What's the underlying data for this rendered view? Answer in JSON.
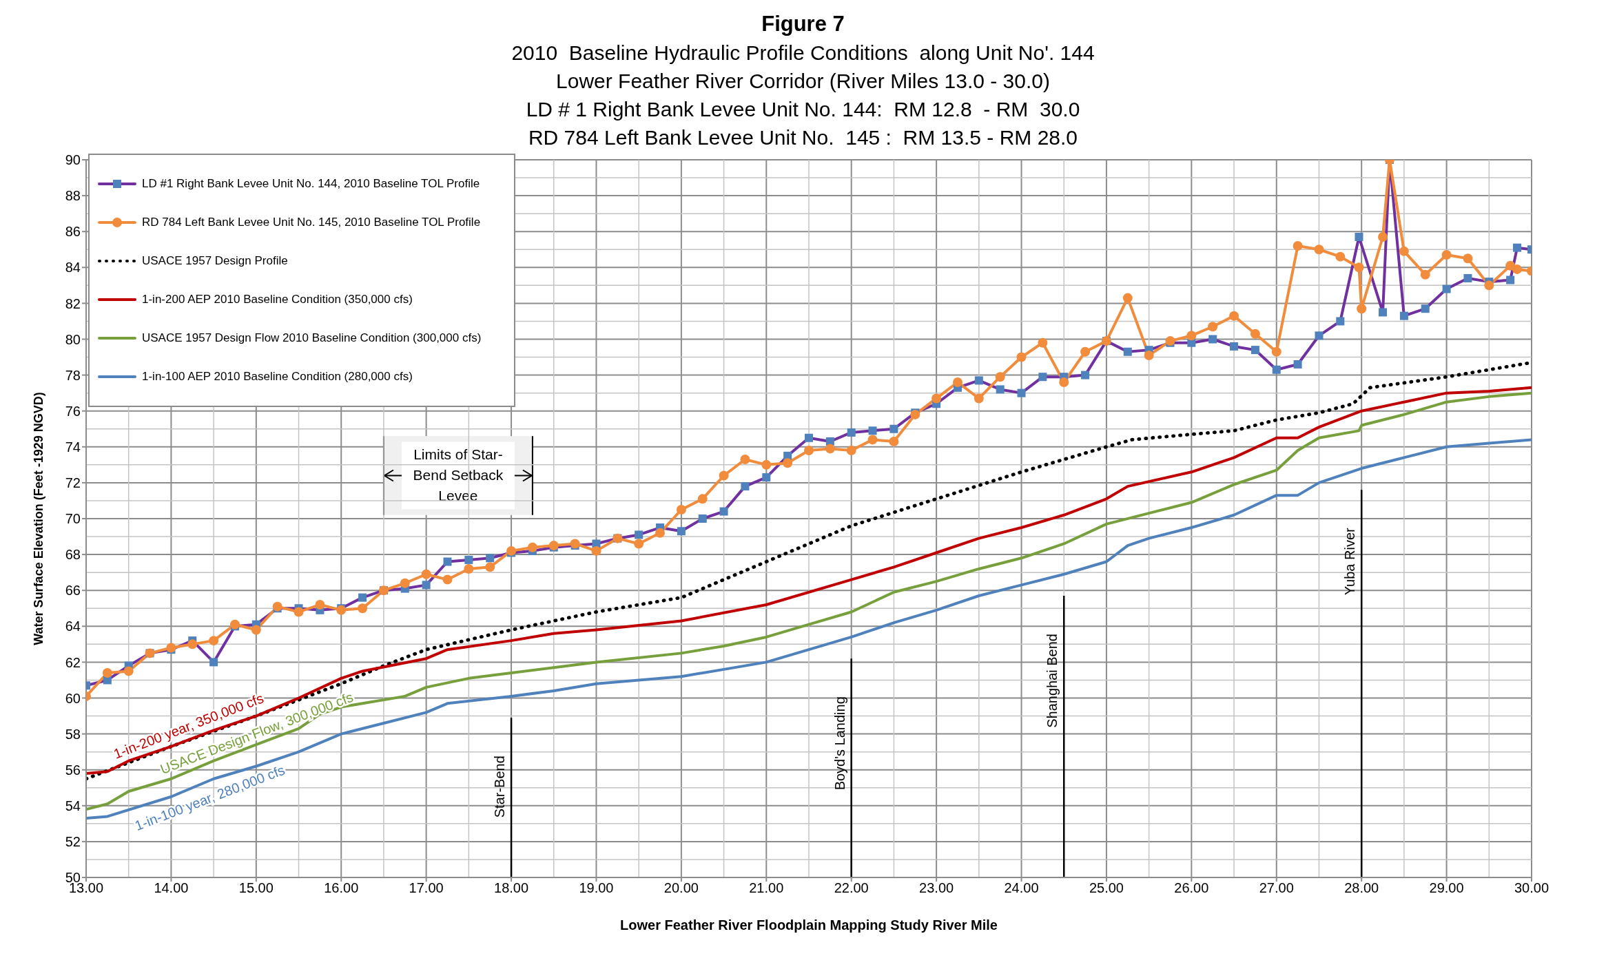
{
  "chart_data": {
    "type": "line",
    "title": "Figure 7",
    "subtitle": "2010  Baseline Hydraulic Profile Conditions  along Unit No'. 144\nLower Feather River Corridor (River Miles 13.0 - 30.0)\nLD # 1 Right Bank Levee Unit No. 144:  RM 12.8  - RM  30.0\nRD 784 Left Bank Levee Unit No.  145 :  RM 13.5 - RM 28.0",
    "xlabel": "Lower Feather River Floodplain Mapping Study River Mile",
    "ylabel": "Water Surface Elevation (Feet -1929 NGVD)",
    "xlim": [
      13,
      30
    ],
    "xticks": [
      {
        "value": 13,
        "label": "13.00"
      },
      {
        "value": 14,
        "label": "14.00"
      },
      {
        "value": 15,
        "label": "15.00"
      },
      {
        "value": 16,
        "label": "16.00"
      },
      {
        "value": 17,
        "label": "17.00"
      },
      {
        "value": 18,
        "label": "18.00"
      },
      {
        "value": 19,
        "label": "19.00"
      },
      {
        "value": 20,
        "label": "20.00"
      },
      {
        "value": 21,
        "label": "21.00"
      },
      {
        "value": 22,
        "label": "22.00"
      },
      {
        "value": 23,
        "label": "23.00"
      },
      {
        "value": 24,
        "label": "24.00"
      },
      {
        "value": 25,
        "label": "25.00"
      },
      {
        "value": 26,
        "label": "26.00"
      },
      {
        "value": 27,
        "label": "27.00"
      },
      {
        "value": 28,
        "label": "28.00"
      },
      {
        "value": 29,
        "label": "29.00"
      },
      {
        "value": 30,
        "label": "30.00"
      }
    ],
    "ylim": [
      50,
      90
    ],
    "yticks": [
      50,
      52,
      54,
      56,
      58,
      60,
      62,
      64,
      66,
      68,
      70,
      72,
      74,
      76,
      78,
      80,
      82,
      84,
      86,
      88,
      90
    ],
    "grid": true,
    "legend": "top left",
    "series": [
      {
        "name": "LD #1 Right Bank Levee Unit No. 144, 2010 Baseline TOL Profile",
        "color": "#7030a0",
        "marker": "square",
        "line_style": "solid",
        "x": [
          13,
          13.25,
          13.5,
          13.75,
          14,
          14.25,
          14.5,
          14.75,
          15,
          15.25,
          15.5,
          15.75,
          16,
          16.25,
          16.5,
          16.75,
          17,
          17.25,
          17.5,
          17.75,
          18,
          18.25,
          18.5,
          18.75,
          19,
          19.25,
          19.5,
          19.75,
          20,
          20.25,
          20.5,
          20.75,
          21,
          21.25,
          21.5,
          21.75,
          22,
          22.25,
          22.5,
          22.75,
          23,
          23.25,
          23.5,
          23.75,
          24,
          24.25,
          24.5,
          24.75,
          25,
          25.25,
          25.5,
          25.75,
          26,
          26.25,
          26.5,
          26.75,
          27,
          27.25,
          27.5,
          27.75,
          27.97,
          28.25,
          28.33,
          28.5,
          28.75,
          29,
          29.25,
          29.5,
          29.75,
          29.83,
          30
        ],
        "values": [
          60.7,
          61.0,
          61.8,
          62.5,
          62.7,
          63.2,
          62.0,
          64.0,
          64.1,
          65.0,
          65.0,
          64.9,
          65.0,
          65.6,
          66.0,
          66.1,
          66.3,
          67.6,
          67.7,
          67.8,
          68.1,
          68.2,
          68.4,
          68.5,
          68.6,
          68.9,
          69.1,
          69.5,
          69.3,
          70.0,
          70.4,
          71.8,
          72.3,
          73.5,
          74.5,
          74.3,
          74.8,
          74.9,
          75.0,
          75.9,
          76.4,
          77.3,
          77.7,
          77.2,
          77.0,
          77.9,
          77.9,
          78.0,
          79.9,
          79.3,
          79.4,
          79.8,
          79.8,
          80.0,
          79.6,
          79.4,
          78.3,
          78.6,
          80.2,
          81.0,
          85.7,
          81.5,
          90,
          81.3,
          81.7,
          82.8,
          83.4,
          83.2,
          83.3,
          85.1,
          85.0
        ]
      },
      {
        "name": "RD 784 Left Bank Levee Unit No. 145, 2010 Baseline TOL Profile",
        "color": "#f08c3c",
        "marker": "circle",
        "line_style": "solid",
        "x": [
          13,
          13.25,
          13.5,
          13.75,
          14,
          14.25,
          14.5,
          14.75,
          15,
          15.25,
          15.5,
          15.75,
          16,
          16.25,
          16.5,
          16.75,
          17,
          17.25,
          17.5,
          17.75,
          18,
          18.25,
          18.5,
          18.75,
          19,
          19.25,
          19.5,
          19.75,
          20,
          20.25,
          20.5,
          20.75,
          21,
          21.25,
          21.5,
          21.75,
          22,
          22.25,
          22.5,
          22.75,
          23,
          23.25,
          23.5,
          23.75,
          24,
          24.25,
          24.5,
          24.75,
          25,
          25.25,
          25.5,
          25.75,
          26,
          26.25,
          26.5,
          26.75,
          27,
          27.25,
          27.5,
          27.75,
          27.97,
          28,
          28.25,
          28.33,
          28.5,
          28.75,
          29,
          29.25,
          29.5,
          29.75,
          29.83,
          30
        ],
        "values": [
          60.1,
          61.4,
          61.5,
          62.5,
          62.8,
          63.0,
          63.2,
          64.1,
          63.8,
          65.1,
          64.8,
          65.2,
          64.9,
          65.0,
          66.0,
          66.4,
          66.9,
          66.6,
          67.2,
          67.3,
          68.2,
          68.4,
          68.5,
          68.6,
          68.2,
          68.9,
          68.6,
          69.2,
          70.5,
          71.1,
          72.4,
          73.3,
          73.0,
          73.1,
          73.8,
          73.9,
          73.8,
          74.4,
          74.3,
          75.8,
          76.7,
          77.6,
          76.7,
          77.9,
          79.0,
          79.8,
          77.6,
          79.3,
          79.9,
          82.3,
          79.1,
          79.9,
          80.2,
          80.7,
          81.3,
          80.3,
          79.3,
          85.2,
          85.0,
          84.6,
          84.0,
          81.7,
          85.7,
          90,
          84.9,
          83.6,
          84.7,
          84.5,
          83.0,
          84.1,
          83.9,
          83.8
        ]
      },
      {
        "name": "USACE 1957 Design Profile",
        "color": "#000000",
        "marker": "none",
        "line_style": "dotted",
        "x": [
          13,
          14,
          15,
          16,
          16.5,
          17,
          18,
          19,
          20,
          20.5,
          21,
          21.5,
          22,
          23,
          24,
          25,
          25.3,
          26,
          26.5,
          27,
          27.5,
          27.9,
          28.1,
          29,
          30
        ],
        "values": [
          55.5,
          57.3,
          59.0,
          60.8,
          61.8,
          62.7,
          63.8,
          64.8,
          65.6,
          66.6,
          67.6,
          68.6,
          69.6,
          71.1,
          72.6,
          74.0,
          74.4,
          74.7,
          74.9,
          75.5,
          75.9,
          76.4,
          77.3,
          77.9,
          78.7
        ]
      },
      {
        "name": "1-in-200 AEP 2010 Baseline Condition (350,000 cfs)",
        "color": "#c00000",
        "marker": "none",
        "line_style": "solid",
        "x": [
          13,
          13.25,
          13.5,
          14,
          14.5,
          15,
          15.5,
          16,
          16.25,
          17,
          17.25,
          18,
          18.5,
          19,
          20,
          21,
          22,
          22.5,
          23,
          23.5,
          24,
          24.5,
          25,
          25.25,
          26,
          26.5,
          27,
          27.25,
          27.5,
          28,
          28.5,
          29,
          29.5,
          30
        ],
        "values": [
          55.8,
          55.9,
          56.5,
          57.3,
          58.2,
          59.0,
          60.0,
          61.1,
          61.5,
          62.2,
          62.7,
          63.2,
          63.6,
          63.8,
          64.3,
          65.2,
          66.6,
          67.3,
          68.1,
          68.9,
          69.5,
          70.2,
          71.1,
          71.8,
          72.6,
          73.4,
          74.5,
          74.5,
          75.1,
          76.0,
          76.5,
          77.0,
          77.1,
          77.3
        ]
      },
      {
        "name": "USACE 1957 Design Flow 2010 Baseline Condition (300,000 cfs)",
        "color": "#77a03c",
        "marker": "none",
        "line_style": "solid",
        "x": [
          13,
          13.25,
          13.5,
          14,
          14.5,
          15,
          15.5,
          15.75,
          16,
          16.5,
          16.75,
          17,
          17.5,
          18,
          18.5,
          19,
          20,
          20.5,
          21,
          21.5,
          22,
          22.5,
          23,
          23.5,
          24,
          24.5,
          25,
          25.5,
          26,
          26.5,
          27,
          27.25,
          27.5,
          27.97,
          28,
          28.5,
          29,
          29.5,
          30
        ],
        "values": [
          53.8,
          54.1,
          54.8,
          55.5,
          56.5,
          57.4,
          58.3,
          59.1,
          59.5,
          59.9,
          60.1,
          60.6,
          61.1,
          61.4,
          61.7,
          62.0,
          62.5,
          62.9,
          63.4,
          64.1,
          64.8,
          65.9,
          66.5,
          67.2,
          67.8,
          68.6,
          69.7,
          70.3,
          70.9,
          71.9,
          72.7,
          73.8,
          74.5,
          74.9,
          75.2,
          75.8,
          76.5,
          76.8,
          77.0
        ]
      },
      {
        "name": "1-in-100 AEP 2010 Baseline Condition (280,000 cfs)",
        "color": "#4f81bd",
        "marker": "none",
        "line_style": "solid",
        "x": [
          13,
          13.25,
          14,
          14.5,
          15,
          15.5,
          16,
          16.5,
          17,
          17.25,
          18,
          18.5,
          19,
          20,
          21,
          21.5,
          22,
          22.5,
          23,
          23.5,
          24,
          24.5,
          25,
          25.25,
          25.5,
          26,
          26.5,
          27,
          27.25,
          27.5,
          28,
          28.5,
          29,
          29.5,
          30
        ],
        "values": [
          53.3,
          53.4,
          54.5,
          55.5,
          56.2,
          57.0,
          58.0,
          58.6,
          59.2,
          59.7,
          60.1,
          60.4,
          60.8,
          61.2,
          62.0,
          62.7,
          63.4,
          64.2,
          64.9,
          65.7,
          66.3,
          66.9,
          67.6,
          68.5,
          68.9,
          69.5,
          70.2,
          71.3,
          71.3,
          72.0,
          72.8,
          73.4,
          74.0,
          74.2,
          74.4
        ]
      }
    ],
    "ref_lines": [
      {
        "axis": "x",
        "value": 18,
        "label": "Star-Bend",
        "color": "#000000"
      },
      {
        "axis": "x",
        "value": 22,
        "label": "Boyd's Landing",
        "color": "#000000"
      },
      {
        "axis": "x",
        "value": 24.5,
        "label": "Shanghai Bend",
        "color": "#000000"
      },
      {
        "axis": "x",
        "value": 28,
        "label": "Yuba River",
        "color": "#000000"
      }
    ],
    "bands": [
      {
        "axis": "x",
        "from": 16.5,
        "to": 18.25,
        "label": "Limits of Star-Bend Setback Levee",
        "color": "#f0f0f0"
      }
    ],
    "annotations": [
      "1-in-200 year, 350,000 cfs",
      "USACE Design Flow, 300,000 cfs",
      "1-in-100 year, 280,000 cfs"
    ]
  }
}
